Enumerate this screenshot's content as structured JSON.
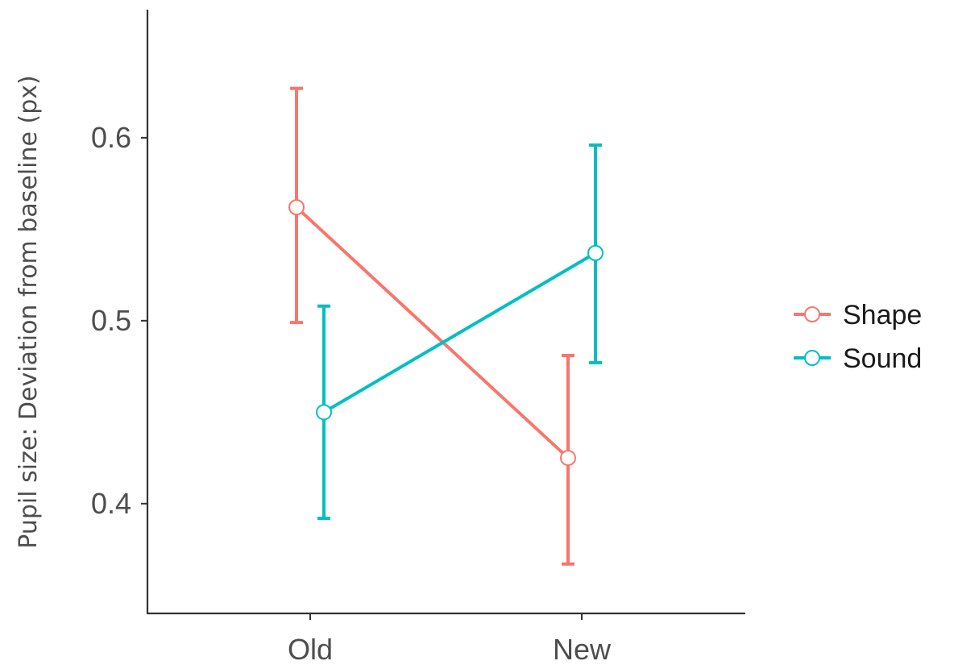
{
  "chart_data": {
    "type": "line",
    "title": "",
    "xlabel": "",
    "ylabel": "Pupil size: Deviation from baseline (px)",
    "categories": [
      "Old",
      "New"
    ],
    "y_ticks": [
      "0.4",
      "0.5",
      "0.6"
    ],
    "ylim": [
      0.34,
      0.67
    ],
    "grid": false,
    "legend_position": "right",
    "series": [
      {
        "name": "Shape",
        "color": "#F8766D",
        "values": [
          0.562,
          0.425
        ],
        "error_lower": [
          0.499,
          0.367
        ],
        "error_upper": [
          0.627,
          0.481
        ]
      },
      {
        "name": "Sound",
        "color": "#00BFC4",
        "values": [
          0.45,
          0.537
        ],
        "error_lower": [
          0.392,
          0.477
        ],
        "error_upper": [
          0.508,
          0.596
        ]
      }
    ]
  }
}
